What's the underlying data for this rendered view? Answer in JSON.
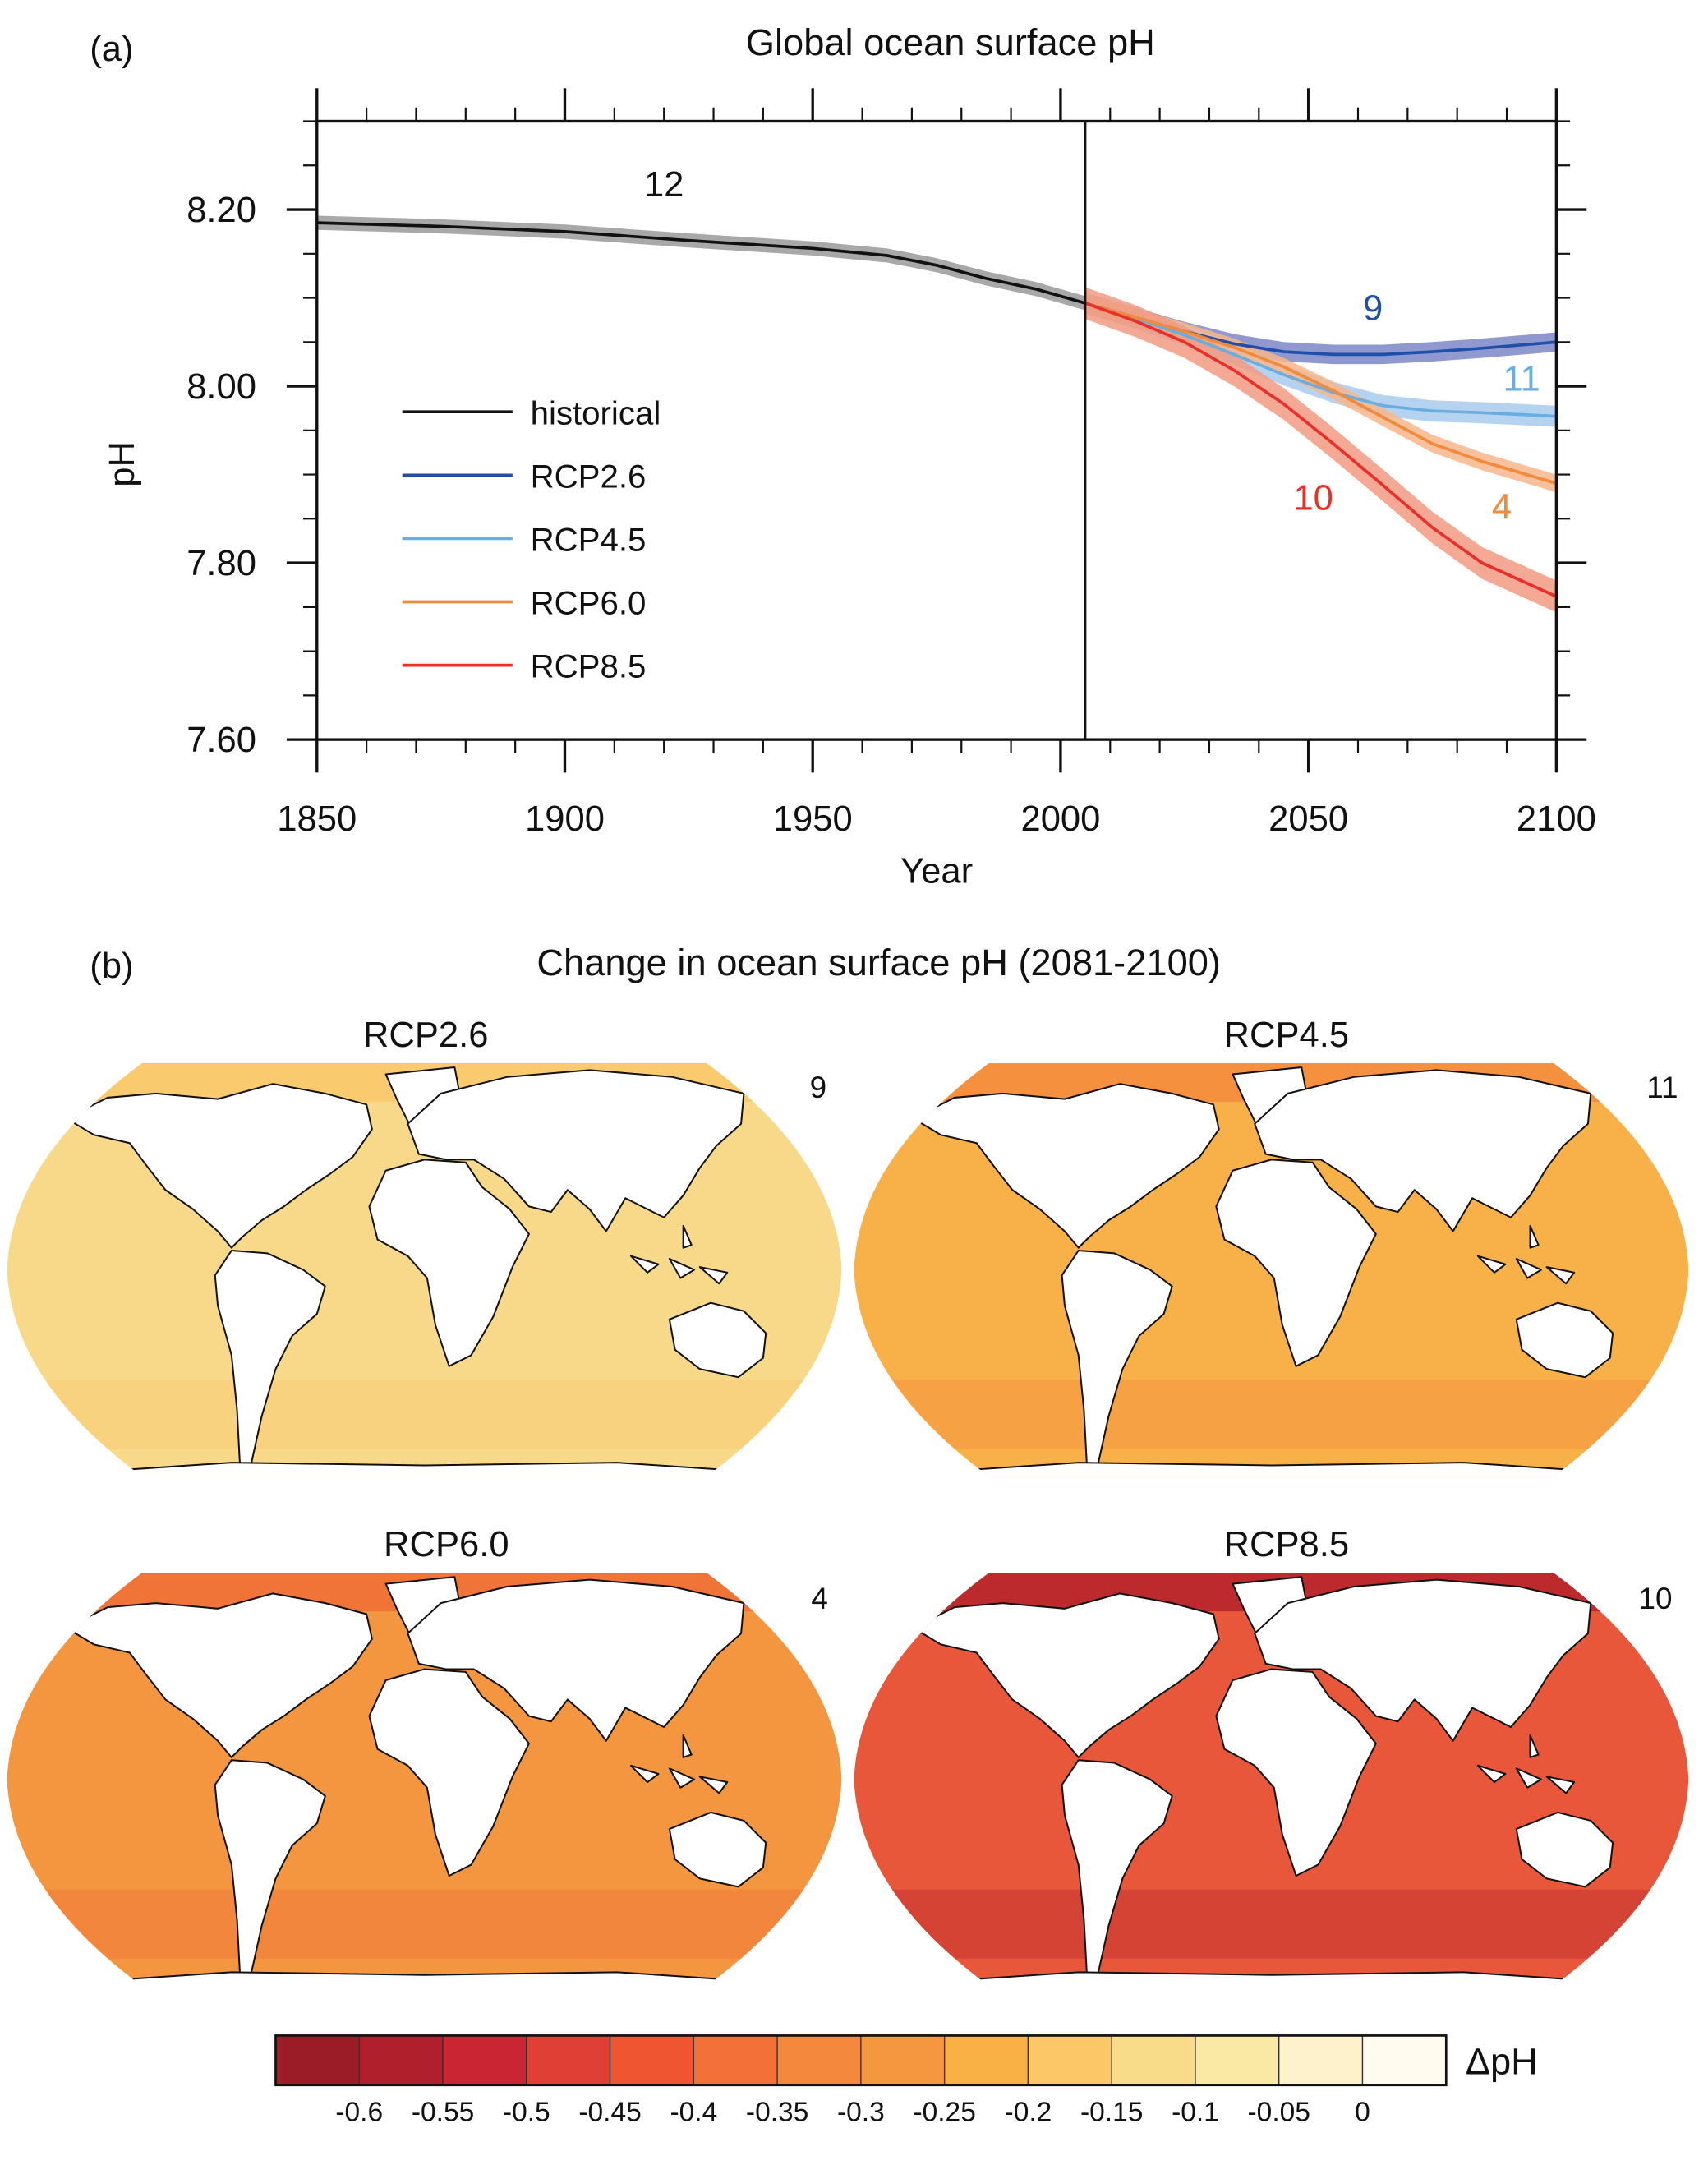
{
  "panel_a": {
    "label": "(a)",
    "title": "Global ocean surface pH"
  },
  "panel_b": {
    "label": "(b)",
    "title": "Change in ocean surface pH (2081-2100)",
    "maps": [
      {
        "title": "RCP2.6",
        "model_count": "9",
        "fill": "#f8d98a",
        "polar_fill": "#f9c766"
      },
      {
        "title": "RCP4.5",
        "model_count": "11",
        "fill": "#f8b048",
        "polar_fill": "#f3883c"
      },
      {
        "title": "RCP6.0",
        "model_count": "4",
        "fill": "#f3963f",
        "polar_fill": "#ef6a36"
      },
      {
        "title": "RCP8.5",
        "model_count": "10",
        "fill": "#e9573a",
        "polar_fill": "#b01f2c"
      }
    ],
    "colorbar": {
      "label": "ΔpH",
      "colors": [
        "#9b1c27",
        "#b01f2c",
        "#c92532",
        "#e03f35",
        "#ee5530",
        "#f37038",
        "#f4883c",
        "#f5973f",
        "#f9b044",
        "#fcc766",
        "#f8dc8a",
        "#f9e9a5",
        "#fdf2cc",
        "#fffbee"
      ],
      "tick_labels": [
        "-0.6",
        "-0.55",
        "-0.5",
        "-0.45",
        "-0.4",
        "-0.35",
        "-0.3",
        "-0.25",
        "-0.2",
        "-0.15",
        "-0.1",
        "-0.05",
        "0"
      ]
    }
  },
  "chart_data": {
    "type": "line",
    "title": "Global ocean surface pH",
    "xlabel": "Year",
    "ylabel": "pH",
    "xlim": [
      1850,
      2100
    ],
    "ylim": [
      7.6,
      8.3
    ],
    "x_ticks": [
      "1850",
      "1900",
      "1950",
      "2000",
      "2050",
      "2100"
    ],
    "y_ticks": [
      "7.60",
      "7.80",
      "8.00",
      "8.20"
    ],
    "y_tick_values": [
      7.6,
      7.8,
      8.0,
      8.2
    ],
    "vertical_line_at": 2005,
    "legend_position": "left",
    "series": [
      {
        "name": "historical",
        "color": "#111111",
        "band_color": "#999999",
        "count_label": "12",
        "count_label_at": [
          1920,
          8.215
        ],
        "x": [
          1850,
          1875,
          1900,
          1925,
          1950,
          1965,
          1975,
          1985,
          1995,
          2005
        ],
        "y": [
          8.185,
          8.181,
          8.175,
          8.165,
          8.156,
          8.148,
          8.137,
          8.122,
          8.11,
          8.094
        ],
        "spread": 0.008
      },
      {
        "name": "RCP2.6",
        "color": "#1f4fa8",
        "band_color": "#7c86c8",
        "count_label": "9",
        "count_label_at": [
          2063,
          8.075
        ],
        "x": [
          2005,
          2015,
          2025,
          2035,
          2045,
          2055,
          2065,
          2075,
          2085,
          2100
        ],
        "y": [
          8.094,
          8.078,
          8.062,
          8.048,
          8.039,
          8.036,
          8.036,
          8.039,
          8.043,
          8.05
        ],
        "spread": 0.011
      },
      {
        "name": "RCP4.5",
        "color": "#6aaee0",
        "band_color": "#a8cbee",
        "count_label": "11",
        "count_label_at": [
          2093,
          7.995
        ],
        "x": [
          2005,
          2015,
          2025,
          2035,
          2045,
          2055,
          2065,
          2075,
          2085,
          2100
        ],
        "y": [
          8.094,
          8.077,
          8.058,
          8.036,
          8.013,
          7.993,
          7.978,
          7.972,
          7.97,
          7.966
        ],
        "spread": 0.012
      },
      {
        "name": "RCP6.0",
        "color": "#f08a3c",
        "band_color": "#f7b68a",
        "count_label": "4",
        "count_label_at": [
          2089,
          7.85
        ],
        "x": [
          2005,
          2015,
          2025,
          2035,
          2045,
          2055,
          2065,
          2075,
          2085,
          2100
        ],
        "y": [
          8.094,
          8.078,
          8.062,
          8.044,
          8.022,
          7.995,
          7.965,
          7.935,
          7.915,
          7.89
        ],
        "spread": 0.01
      },
      {
        "name": "RCP8.5",
        "color": "#e8302a",
        "band_color": "#f19a80",
        "count_label": "10",
        "count_label_at": [
          2051,
          7.86
        ],
        "x": [
          2005,
          2015,
          2025,
          2035,
          2045,
          2055,
          2065,
          2075,
          2085,
          2100
        ],
        "y": [
          8.094,
          8.074,
          8.05,
          8.018,
          7.98,
          7.935,
          7.888,
          7.84,
          7.8,
          7.762
        ],
        "spread": 0.018
      }
    ]
  }
}
